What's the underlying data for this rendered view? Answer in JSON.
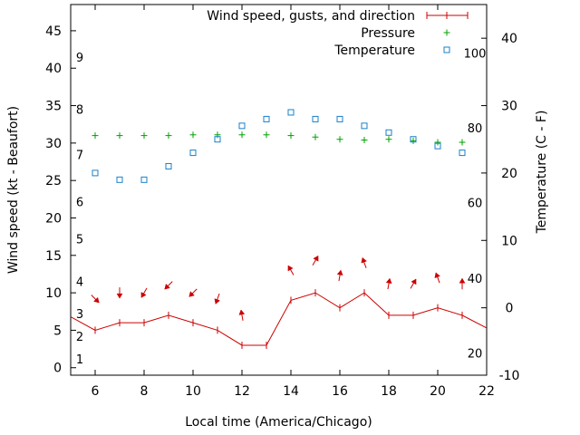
{
  "chart_data": {
    "type": "line",
    "x_axis": {
      "label": "Local time (America/Chicago)",
      "range": [
        5,
        22
      ],
      "ticks": [
        6,
        8,
        10,
        12,
        14,
        16,
        18,
        20,
        22
      ]
    },
    "y_left": {
      "label": "Wind speed (kt - Beaufort)",
      "range": [
        -1,
        48.5
      ],
      "ticks": [
        0,
        5,
        10,
        15,
        20,
        25,
        30,
        35,
        40,
        45
      ]
    },
    "y_right": {
      "label": "Temperature (C - F)",
      "range": [
        -10,
        45
      ],
      "ticks": [
        -10,
        0,
        10,
        20,
        30,
        40
      ]
    },
    "beaufort_labels": [
      {
        "text": "1",
        "kt": 1.2
      },
      {
        "text": "2",
        "kt": 4.2
      },
      {
        "text": "3",
        "kt": 7.2
      },
      {
        "text": "4",
        "kt": 11.5
      },
      {
        "text": "5",
        "kt": 17.2
      },
      {
        "text": "6",
        "kt": 22.2
      },
      {
        "text": "7",
        "kt": 28.5
      },
      {
        "text": "8",
        "kt": 34.5
      },
      {
        "text": "9",
        "kt": 41.5
      }
    ],
    "fahrenheit_labels": [
      {
        "text": "20",
        "celsius": -6.7
      },
      {
        "text": "40",
        "celsius": 4.4
      },
      {
        "text": "60",
        "celsius": 15.6
      },
      {
        "text": "80",
        "celsius": 26.7
      },
      {
        "text": "100",
        "celsius": 37.8
      }
    ],
    "legend": [
      "Wind speed, gusts, and direction",
      "Pressure",
      "Temperature"
    ],
    "colors": {
      "wind": "#cc0000",
      "pressure": "#00a000",
      "temperature": "#1a80c8"
    },
    "series": [
      {
        "name": "Wind speed, gusts, and direction",
        "x": [
          5,
          6,
          7,
          8,
          9,
          10,
          11,
          12,
          13,
          14,
          15,
          16,
          17,
          18,
          19,
          20,
          21,
          22
        ],
        "y": [
          6.8,
          5,
          6,
          6,
          7,
          6,
          5,
          3,
          3,
          9,
          10,
          8,
          10,
          7,
          7,
          8,
          7,
          5.3
        ]
      },
      {
        "name": "Wind direction arrows",
        "x": [
          6,
          7,
          8,
          9,
          10,
          11,
          12,
          14,
          15,
          16,
          17,
          18,
          19,
          20,
          21
        ],
        "y_kt": [
          9.2,
          10,
          10,
          11,
          10,
          9.2,
          7,
          13,
          14.3,
          12.3,
          14,
          11.2,
          11.2,
          12,
          11.2
        ],
        "direction_deg": [
          45,
          90,
          120,
          135,
          135,
          110,
          260,
          240,
          300,
          280,
          250,
          280,
          300,
          250,
          270
        ]
      },
      {
        "name": "Pressure",
        "x": [
          6,
          7,
          8,
          9,
          10,
          11,
          12,
          13,
          14,
          15,
          16,
          17,
          18,
          19,
          20,
          21
        ],
        "y": [
          31,
          31,
          31,
          31,
          31.1,
          31.1,
          31.1,
          31.1,
          31,
          30.8,
          30.5,
          30.4,
          30.5,
          30.3,
          30.1,
          30.1
        ]
      },
      {
        "name": "Temperature",
        "x": [
          6,
          7,
          8,
          9,
          10,
          11,
          12,
          13,
          14,
          15,
          16,
          17,
          18,
          19,
          20,
          21
        ],
        "y": [
          20,
          19,
          19,
          21,
          23,
          25,
          27,
          28,
          29,
          28,
          28,
          27,
          26,
          25,
          24,
          23
        ]
      }
    ]
  }
}
